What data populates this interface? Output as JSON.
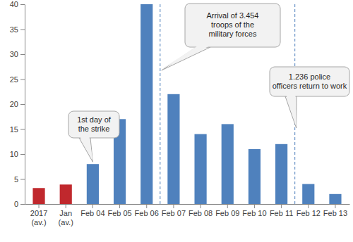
{
  "chart_data": {
    "type": "bar",
    "categories": [
      "2017 (av.)",
      "Jan (av.)",
      "Feb 04",
      "Feb 05",
      "Feb 06",
      "Feb 07",
      "Feb 08",
      "Feb 09",
      "Feb 10",
      "Feb 11",
      "Feb 12",
      "Feb 13"
    ],
    "values": [
      3.2,
      3.9,
      8,
      17,
      40,
      22,
      14,
      16,
      11,
      12,
      4,
      2
    ],
    "colors": [
      "#c0282d",
      "#c0282d",
      "#4f81bd",
      "#4f81bd",
      "#4f81bd",
      "#4f81bd",
      "#4f81bd",
      "#4f81bd",
      "#4f81bd",
      "#4f81bd",
      "#4f81bd",
      "#4f81bd"
    ],
    "ylim": [
      0,
      40
    ],
    "yticks": [
      0,
      5,
      10,
      15,
      20,
      25,
      30,
      35,
      40
    ],
    "grid": false,
    "annotations": [
      "1st day of\nthe strike",
      "Arrival of 3.454\ntroops of the\nmilitary forces",
      "1.236 police\nofficers return to work"
    ]
  }
}
